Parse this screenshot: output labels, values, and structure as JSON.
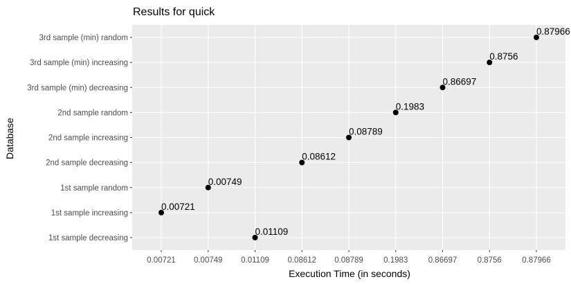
{
  "chart_data": {
    "type": "scatter",
    "title": "Results for quick",
    "xlabel": "Execution Time (in seconds)",
    "ylabel": "Database",
    "x_scale": "categorical",
    "x_categories": [
      "0.00721",
      "0.00749",
      "0.01109",
      "0.08612",
      "0.08789",
      "0.1983",
      "0.86697",
      "0.8756",
      "0.87966"
    ],
    "y_categories": [
      "1st sample decreasing",
      "1st sample increasing",
      "1st sample random",
      "2nd sample decreasing",
      "2nd sample increasing",
      "2nd sample random",
      "3rd sample (min) decreasing",
      "3rd sample (min) increasing",
      "3rd sample (min) random"
    ],
    "points": [
      {
        "database": "1st sample decreasing",
        "x": "0.01109",
        "label": "0.01109"
      },
      {
        "database": "1st sample increasing",
        "x": "0.00721",
        "label": "0.00721"
      },
      {
        "database": "1st sample random",
        "x": "0.00749",
        "label": "0.00749"
      },
      {
        "database": "2nd sample decreasing",
        "x": "0.08612",
        "label": "0.08612"
      },
      {
        "database": "2nd sample increasing",
        "x": "0.08789",
        "label": "0.08789"
      },
      {
        "database": "2nd sample random",
        "x": "0.1983",
        "label": "0.1983"
      },
      {
        "database": "3rd sample (min) decreasing",
        "x": "0.86697",
        "label": "0.86697"
      },
      {
        "database": "3rd sample (min) increasing",
        "x": "0.8756",
        "label": "0.8756"
      },
      {
        "database": "3rd sample (min) random",
        "x": "0.87966",
        "label": "0.87966"
      }
    ],
    "grid": true,
    "legend": "none",
    "colors": {
      "panel_background": "#ebebeb",
      "grid": "#ffffff",
      "point": "#000000",
      "tick_label": "#4d4d4d",
      "tick_mark": "#333333"
    }
  }
}
